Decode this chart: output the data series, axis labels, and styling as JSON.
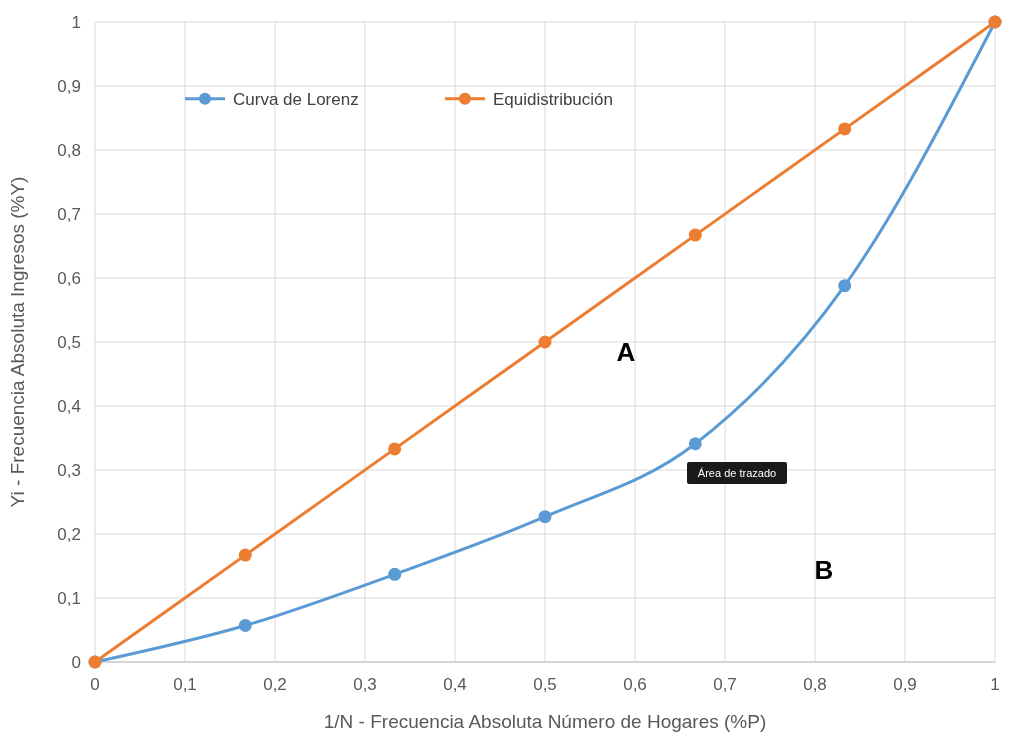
{
  "chart_data": {
    "type": "line",
    "xlabel": "1/N - Frecuencia Absoluta Número de Hogares (%P)",
    "ylabel": "Yi - Frecuencia Absoluta Ingresos (%Y)",
    "series": [
      {
        "name": "Curva de Lorenz",
        "color": "#5b9bd5",
        "x": [
          0,
          0.167,
          0.333,
          0.5,
          0.667,
          0.833,
          1
        ],
        "values": [
          0,
          0.057,
          0.137,
          0.227,
          0.341,
          0.588,
          1
        ]
      },
      {
        "name": "Equidistribución",
        "color": "#ed7d31",
        "x": [
          0,
          0.167,
          0.333,
          0.5,
          0.667,
          0.833,
          1
        ],
        "values": [
          0,
          0.167,
          0.333,
          0.5,
          0.667,
          0.833,
          1
        ]
      }
    ],
    "xlim": [
      0,
      1
    ],
    "ylim": [
      0,
      1
    ],
    "xticks": [
      0,
      {
        "value": 0.1,
        "label": "0,1"
      },
      {
        "value": 0.2,
        "label": "0,2"
      },
      {
        "value": 0.3,
        "label": "0,3"
      },
      {
        "value": 0.4,
        "label": "0,4"
      },
      {
        "value": 0.5,
        "label": "0,5"
      },
      {
        "value": 0.6,
        "label": "0,6"
      },
      {
        "value": 0.7,
        "label": "0,7"
      },
      {
        "value": 0.8,
        "label": "0,8"
      },
      {
        "value": 0.9,
        "label": "0,9"
      },
      1
    ],
    "yticks": [
      0,
      {
        "value": 0.1,
        "label": "0,1"
      },
      {
        "value": 0.2,
        "label": "0,2"
      },
      {
        "value": 0.3,
        "label": "0,3"
      },
      {
        "value": 0.4,
        "label": "0,4"
      },
      {
        "value": 0.5,
        "label": "0,5"
      },
      {
        "value": 0.6,
        "label": "0,6"
      },
      {
        "value": 0.7,
        "label": "0,7"
      },
      {
        "value": 0.8,
        "label": "0,8"
      },
      {
        "value": 0.9,
        "label": "0,9"
      },
      1
    ],
    "annotations": [
      "A",
      "B",
      "Área de trazado"
    ],
    "grid": true,
    "legend": "top left",
    "marker": "circle",
    "line_style": "solid"
  }
}
